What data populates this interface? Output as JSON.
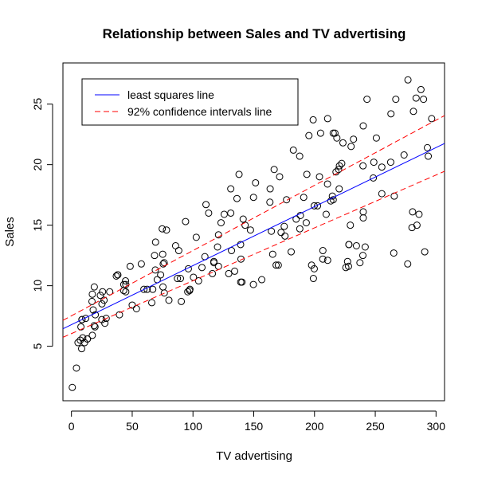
{
  "chart_data": {
    "type": "scatter",
    "title": "Relationship between Sales and TV advertising",
    "xlabel": "TV advertising",
    "ylabel": "Sales",
    "xlim": [
      -7,
      307
    ],
    "ylim": [
      0.5,
      28.4
    ],
    "xticks": [
      0,
      50,
      100,
      150,
      200,
      250,
      300
    ],
    "yticks": [
      5,
      10,
      15,
      20,
      25
    ],
    "grid": false,
    "legend_position": "top-left",
    "legend": [
      {
        "label": "least squares line",
        "color": "#0000ff",
        "style": "solid"
      },
      {
        "label": "92% confidence intervals line",
        "color": "#ff0000",
        "style": "dashed"
      }
    ],
    "lines": [
      {
        "name": "least squares line",
        "x": [
          -7,
          307
        ],
        "y": [
          6.44,
          21.75
        ],
        "color": "#0000ff",
        "style": "solid"
      },
      {
        "name": "92% confidence intervals line upper",
        "x": [
          -7,
          307
        ],
        "y": [
          7.14,
          24.05
        ],
        "color": "#ff0000",
        "style": "dashed"
      },
      {
        "name": "92% confidence intervals line lower",
        "x": [
          -7,
          307
        ],
        "y": [
          5.74,
          19.45
        ],
        "color": "#ff0000",
        "style": "dashed"
      }
    ],
    "points": [
      [
        0.7,
        1.6
      ],
      [
        4.1,
        3.2
      ],
      [
        5.4,
        5.3
      ],
      [
        7.3,
        5.5
      ],
      [
        7.8,
        6.6
      ],
      [
        8.4,
        4.8
      ],
      [
        8.6,
        7.2
      ],
      [
        9.3,
        5.7
      ],
      [
        10.8,
        5.3
      ],
      [
        11.7,
        7.3
      ],
      [
        13.1,
        5.6
      ],
      [
        13.2,
        5.6
      ],
      [
        16.9,
        8.7
      ],
      [
        17.2,
        5.9
      ],
      [
        17.2,
        9.3
      ],
      [
        17.9,
        8.0
      ],
      [
        18.7,
        6.7
      ],
      [
        18.8,
        9.9
      ],
      [
        19.4,
        6.6
      ],
      [
        19.6,
        7.6
      ],
      [
        23.8,
        9.2
      ],
      [
        25.0,
        7.2
      ],
      [
        25.1,
        8.5
      ],
      [
        25.6,
        9.5
      ],
      [
        26.8,
        8.8
      ],
      [
        27.5,
        6.9
      ],
      [
        28.6,
        7.3
      ],
      [
        31.5,
        9.5
      ],
      [
        36.9,
        10.8
      ],
      [
        38.0,
        10.9
      ],
      [
        38.2,
        10.9
      ],
      [
        39.5,
        7.6
      ],
      [
        43.0,
        9.6
      ],
      [
        43.1,
        10.1
      ],
      [
        44.5,
        10.4
      ],
      [
        44.7,
        10.1
      ],
      [
        48.3,
        11.6
      ],
      [
        50.0,
        8.4
      ],
      [
        53.5,
        8.1
      ],
      [
        57.5,
        11.8
      ],
      [
        59.6,
        9.7
      ],
      [
        62.3,
        9.7
      ],
      [
        66.1,
        8.6
      ],
      [
        66.9,
        9.7
      ],
      [
        68.4,
        12.5
      ],
      [
        69.0,
        11.3
      ],
      [
        69.2,
        13.6
      ],
      [
        70.6,
        10.5
      ],
      [
        73.4,
        10.9
      ],
      [
        74.7,
        14.7
      ],
      [
        75.1,
        12.6
      ],
      [
        75.3,
        9.9
      ],
      [
        75.5,
        11.8
      ],
      [
        76.3,
        11.9
      ],
      [
        76.4,
        9.4
      ],
      [
        78.2,
        14.6
      ],
      [
        80.2,
        8.8
      ],
      [
        85.7,
        13.3
      ],
      [
        87.2,
        10.6
      ],
      [
        88.3,
        12.9
      ],
      [
        89.7,
        10.6
      ],
      [
        90.4,
        8.7
      ],
      [
        93.9,
        15.3
      ],
      [
        95.7,
        9.5
      ],
      [
        96.2,
        11.4
      ],
      [
        97.2,
        9.6
      ],
      [
        97.5,
        9.7
      ],
      [
        100.4,
        10.7
      ],
      [
        102.7,
        14.0
      ],
      [
        104.6,
        10.4
      ],
      [
        107.4,
        11.5
      ],
      [
        109.8,
        12.4
      ],
      [
        110.7,
        16.7
      ],
      [
        112.9,
        16.0
      ],
      [
        116.0,
        11.0
      ],
      [
        117.2,
        11.9
      ],
      [
        120.2,
        13.2
      ],
      [
        121.0,
        11.6
      ],
      [
        123.1,
        15.2
      ],
      [
        125.7,
        15.9
      ],
      [
        129.4,
        11.0
      ],
      [
        131.1,
        18.0
      ],
      [
        131.7,
        12.9
      ],
      [
        134.3,
        11.2
      ],
      [
        136.2,
        17.2
      ],
      [
        137.9,
        19.2
      ],
      [
        139.2,
        13.4
      ],
      [
        139.3,
        10.3
      ],
      [
        139.5,
        12.2
      ],
      [
        140.3,
        10.3
      ],
      [
        141.3,
        15.5
      ],
      [
        142.9,
        15.0
      ],
      [
        147.3,
        14.6
      ],
      [
        149.7,
        10.1
      ],
      [
        149.8,
        17.3
      ],
      [
        151.5,
        18.5
      ],
      [
        156.6,
        10.5
      ],
      [
        163.3,
        16.9
      ],
      [
        163.5,
        18.0
      ],
      [
        164.5,
        14.5
      ],
      [
        165.6,
        12.6
      ],
      [
        166.8,
        19.6
      ],
      [
        168.4,
        11.7
      ],
      [
        170.2,
        11.7
      ],
      [
        171.3,
        19.0
      ],
      [
        172.5,
        14.4
      ],
      [
        175.1,
        14.9
      ],
      [
        175.7,
        14.1
      ],
      [
        177.0,
        17.1
      ],
      [
        180.8,
        12.8
      ],
      [
        182.6,
        21.2
      ],
      [
        184.9,
        15.5
      ],
      [
        187.8,
        20.7
      ],
      [
        187.9,
        14.7
      ],
      [
        188.4,
        15.8
      ],
      [
        191.1,
        17.3
      ],
      [
        193.2,
        15.2
      ],
      [
        193.7,
        19.2
      ],
      [
        195.4,
        22.4
      ],
      [
        197.6,
        11.7
      ],
      [
        198.9,
        23.7
      ],
      [
        199.1,
        10.6
      ],
      [
        199.8,
        11.4
      ],
      [
        202.5,
        16.6
      ],
      [
        204.1,
        19.0
      ],
      [
        205.0,
        22.6
      ],
      [
        206.8,
        12.2
      ],
      [
        206.9,
        12.9
      ],
      [
        209.6,
        15.9
      ],
      [
        210.7,
        18.4
      ],
      [
        210.8,
        23.8
      ],
      [
        213.4,
        17.0
      ],
      [
        214.7,
        17.4
      ],
      [
        215.4,
        22.6
      ],
      [
        217.7,
        19.4
      ],
      [
        218.4,
        22.2
      ],
      [
        219.8,
        19.6
      ],
      [
        220.3,
        18.0
      ],
      [
        220.5,
        19.9
      ],
      [
        222.4,
        20.1
      ],
      [
        223.4,
        21.8
      ],
      [
        225.8,
        11.5
      ],
      [
        227.2,
        12.0
      ],
      [
        228.0,
        11.6
      ],
      [
        228.3,
        13.4
      ],
      [
        229.5,
        15.0
      ],
      [
        230.1,
        21.5
      ],
      [
        232.1,
        22.1
      ],
      [
        234.5,
        13.3
      ],
      [
        237.4,
        11.9
      ],
      [
        239.8,
        12.5
      ],
      [
        239.9,
        19.9
      ],
      [
        240.1,
        15.6
      ],
      [
        241.7,
        13.2
      ],
      [
        243.2,
        25.4
      ],
      [
        248.4,
        18.9
      ],
      [
        248.8,
        20.2
      ],
      [
        250.9,
        22.2
      ],
      [
        255.4,
        17.6
      ],
      [
        262.7,
        20.2
      ],
      [
        265.2,
        12.7
      ],
      [
        265.6,
        17.4
      ],
      [
        266.9,
        25.4
      ],
      [
        273.7,
        20.8
      ],
      [
        276.7,
        11.8
      ],
      [
        276.9,
        27.0
      ],
      [
        280.2,
        14.8
      ],
      [
        280.7,
        16.1
      ],
      [
        281.4,
        24.4
      ],
      [
        283.6,
        25.5
      ],
      [
        284.3,
        15.0
      ],
      [
        286.0,
        15.9
      ],
      [
        287.6,
        26.2
      ],
      [
        289.7,
        25.4
      ],
      [
        290.7,
        12.8
      ],
      [
        292.9,
        21.4
      ],
      [
        293.6,
        20.7
      ],
      [
        296.4,
        23.8
      ],
      [
        199.8,
        16.6
      ],
      [
        215.4,
        17.1
      ],
      [
        240.1,
        23.2
      ],
      [
        262.9,
        24.2
      ],
      [
        121.0,
        14.2
      ],
      [
        8.7,
        7.2
      ],
      [
        210.8,
        12.1
      ],
      [
        216.8,
        22.6
      ],
      [
        255.4,
        19.8
      ],
      [
        44.7,
        9.5
      ],
      [
        131.1,
        16.0
      ],
      [
        240.1,
        16.1
      ],
      [
        117.2,
        12.0
      ],
      [
        228.3,
        13.4
      ]
    ]
  }
}
